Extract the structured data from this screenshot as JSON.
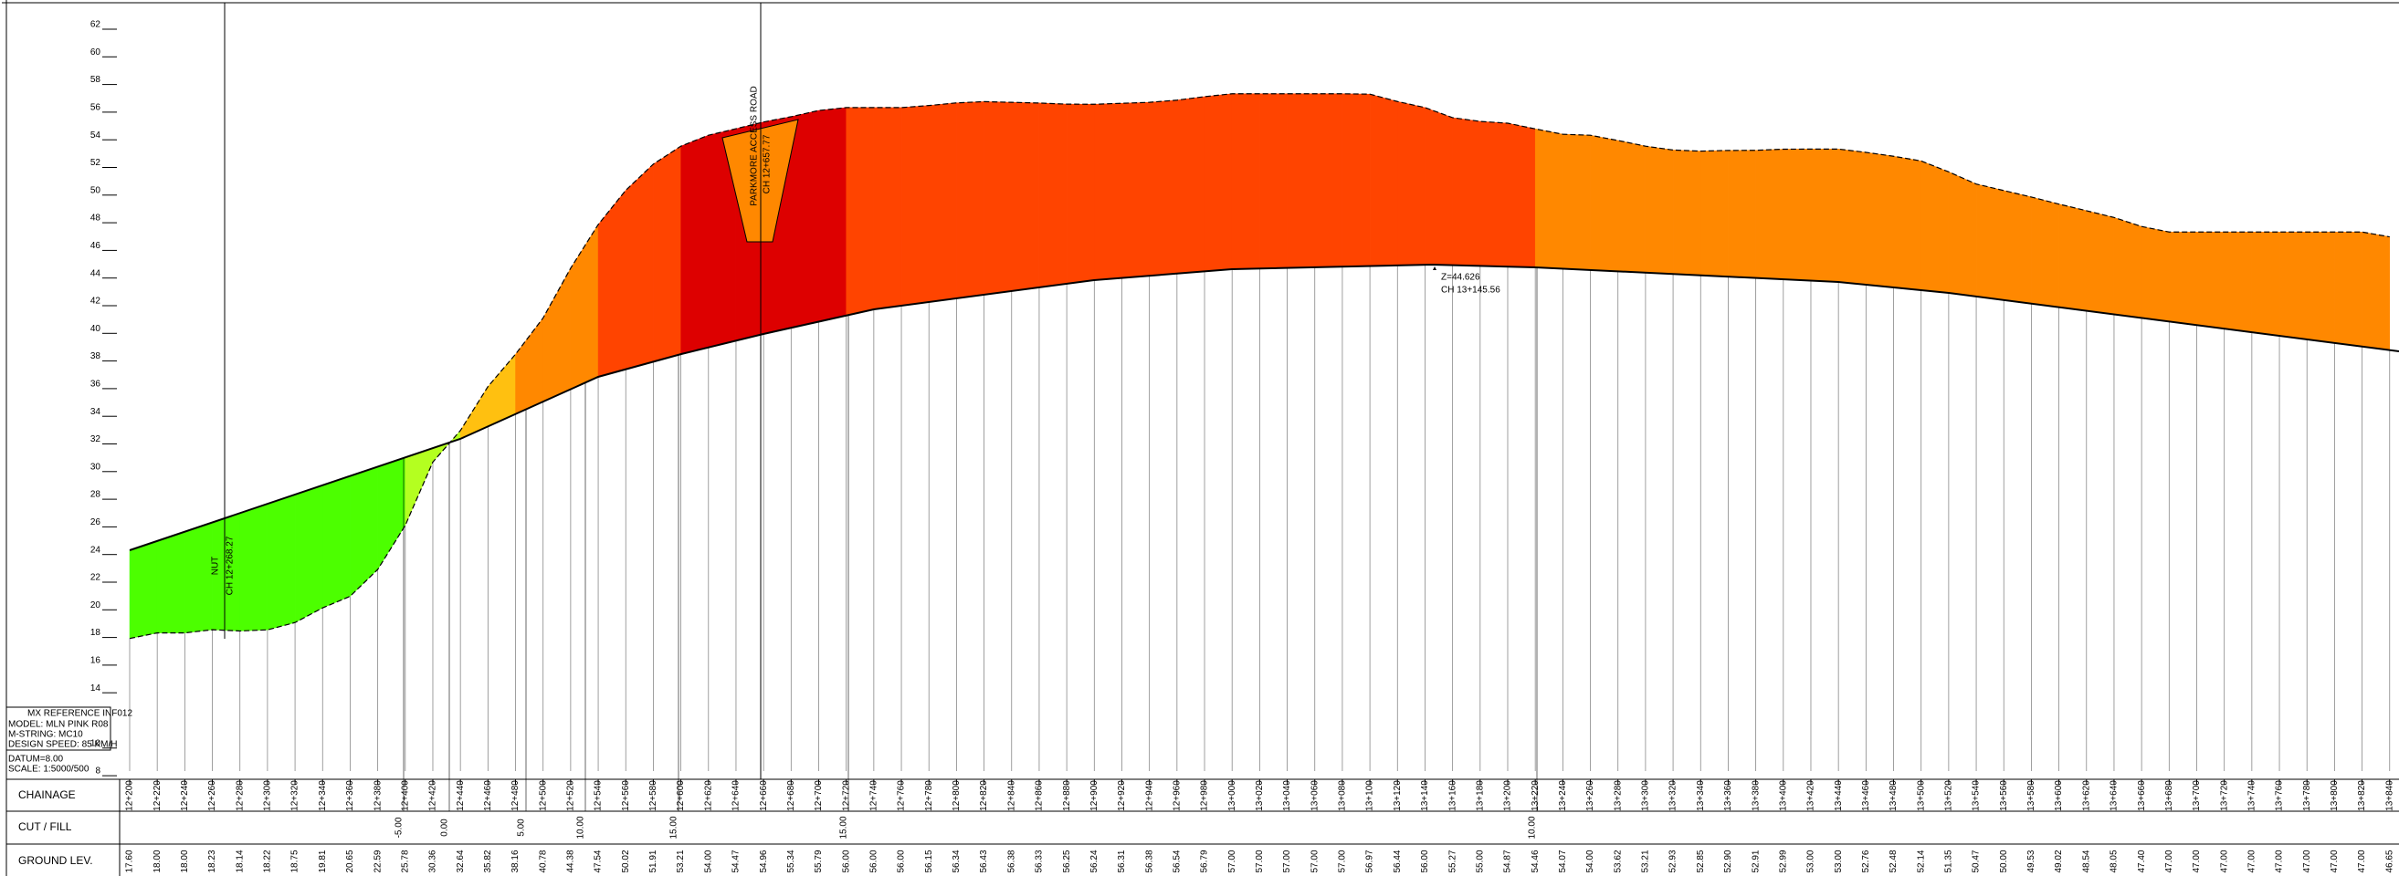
{
  "axis": {
    "yticks": [
      8,
      10,
      14,
      16,
      18,
      20,
      22,
      24,
      26,
      28,
      30,
      32,
      34,
      36,
      38,
      40,
      42,
      44,
      46,
      48,
      50,
      52,
      54,
      56,
      58,
      60,
      62
    ],
    "datum": "DATUM=8.00",
    "scale": "SCALE: 1:5000/500"
  },
  "info_box": [
    "MX REFERENCE INF012",
    "MODEL: MLN PINK R08",
    "M-STRING: MC10",
    "DESIGN SPEED: 85 KM/H"
  ],
  "rows": {
    "chainage": "CHAINAGE",
    "cut_fill": "CUT / FILL",
    "ground": "GROUND LEV."
  },
  "chainages": [
    "12+200",
    "12+220",
    "12+240",
    "12+260",
    "12+280",
    "12+300",
    "12+320",
    "12+340",
    "12+360",
    "12+380",
    "12+400",
    "12+420",
    "12+440",
    "12+460",
    "12+480",
    "12+500",
    "12+520",
    "12+540",
    "12+560",
    "12+580",
    "12+600",
    "12+620",
    "12+640",
    "12+660",
    "12+680",
    "12+700",
    "12+720",
    "12+740",
    "12+760",
    "12+780",
    "12+800",
    "12+820",
    "12+840",
    "12+860",
    "12+880",
    "12+900",
    "12+920",
    "12+940",
    "12+960",
    "12+980",
    "13+000",
    "13+020",
    "13+040",
    "13+060",
    "13+080",
    "13+100",
    "13+120",
    "13+140",
    "13+160",
    "13+180",
    "13+200",
    "13+220",
    "13+240",
    "13+260",
    "13+280",
    "13+300",
    "13+320",
    "13+340",
    "13+360",
    "13+380",
    "13+400",
    "13+420",
    "13+440",
    "13+460",
    "13+480",
    "13+500",
    "13+520",
    "13+540",
    "13+560",
    "13+580",
    "13+600",
    "13+620",
    "13+640",
    "13+660",
    "13+680",
    "13+700",
    "13+720",
    "13+740",
    "13+760",
    "13+780",
    "13+800",
    "13+820",
    "13+840"
  ],
  "ground": {
    "values": [
      17.6,
      18,
      18,
      18.23,
      18.14,
      18.22,
      18.75,
      19.81,
      20.65,
      22.59,
      25.78,
      30.36,
      32.64,
      35.82,
      38.16,
      40.78,
      44.38,
      47.54,
      50.02,
      51.91,
      53.21,
      54,
      54.47,
      54.96,
      55.34,
      55.79,
      56,
      56,
      56,
      56.15,
      56.34,
      56.43,
      56.38,
      56.33,
      56.25,
      56.24,
      56.31,
      56.38,
      56.54,
      56.79,
      57,
      57,
      57,
      57,
      57,
      56.97,
      56.44,
      56,
      55.27,
      55,
      54.87,
      54.46,
      54.07,
      54,
      53.62,
      53.21,
      52.93,
      52.85,
      52.9,
      52.91,
      52.99,
      53,
      53,
      52.76,
      52.48,
      52.14,
      51.35,
      50.47,
      50,
      49.53,
      49.02,
      48.54,
      48.05,
      47.4,
      47,
      47,
      47,
      47,
      47,
      47,
      47,
      47,
      46.65
    ],
    "value_labels": [
      "17.60",
      "18.00",
      "18.00",
      "18.23",
      "18.14",
      "18.22",
      "18.75",
      "19.81",
      "20.65",
      "22.59",
      "25.78",
      "30.36",
      "32.64",
      "35.82",
      "38.16",
      "40.78",
      "44.38",
      "47.54",
      "50.02",
      "51.91",
      "53.21",
      "54.00",
      "54.47",
      "54.96",
      "55.34",
      "55.79",
      "56.00",
      "56.00",
      "56.00",
      "56.15",
      "56.34",
      "56.43",
      "56.38",
      "56.33",
      "56.25",
      "56.24",
      "56.31",
      "56.38",
      "56.54",
      "56.79",
      "57.00",
      "57.00",
      "57.00",
      "57.00",
      "57.00",
      "56.97",
      "56.44",
      "56.00",
      "55.27",
      "55.00",
      "54.87",
      "54.46",
      "54.07",
      "54.00",
      "53.62",
      "53.21",
      "52.93",
      "52.85",
      "52.90",
      "52.91",
      "52.99",
      "53.00",
      "53.00",
      "52.76",
      "52.48",
      "52.14",
      "51.35",
      "50.47",
      "50.00",
      "49.53",
      "49.02",
      "48.54",
      "48.05",
      "47.40",
      "47.00",
      "47.00",
      "47.00",
      "47.00",
      "47.00",
      "47.00",
      "47.00",
      "47.00",
      "46.65"
    ]
  },
  "cut_fill": [
    {
      "value": -5,
      "label": "-5.00"
    },
    {
      "value": 0,
      "label": "0.00"
    },
    {
      "value": 5,
      "label": "5.00"
    },
    {
      "value": 10,
      "label": "10.00"
    },
    {
      "value": 15,
      "label": "15.00"
    },
    {
      "value": 15,
      "label": "15.00"
    },
    {
      "value": 10,
      "label": "10.00"
    }
  ],
  "annotations": {
    "nut": "NUT",
    "nut_ch": "CH 12+268.27",
    "road": "PARKMORE ACCESS ROAD",
    "road_ch": "CH 12+657.77",
    "z": "Z=44.626",
    "z_ch": "CH 13+145.56"
  }
}
